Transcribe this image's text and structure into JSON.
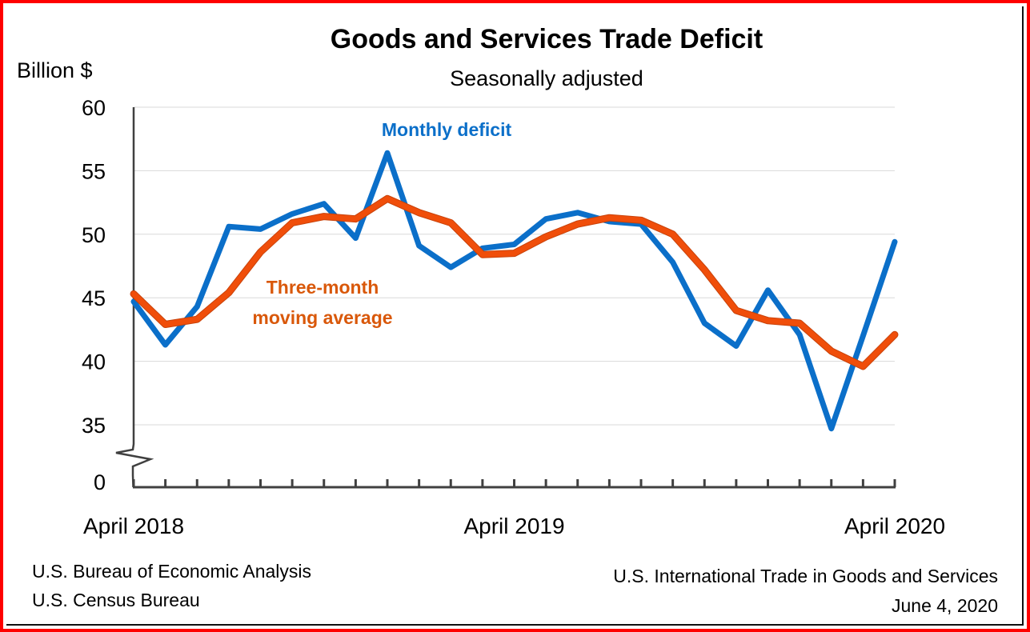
{
  "chart_data": {
    "type": "line",
    "title": "Goods and Services Trade Deficit",
    "subtitle": "Seasonally adjusted",
    "ylabel": "Billion $",
    "xlabel": "",
    "ylim": [
      30,
      60
    ],
    "y_ticks": [
      "60",
      "55",
      "50",
      "45",
      "40",
      "35",
      "0"
    ],
    "y_tick_values": [
      60,
      55,
      50,
      45,
      40,
      35
    ],
    "y_axis_break": true,
    "y_zero_label": "0",
    "grid": true,
    "x": [
      "Apr 2018",
      "May 2018",
      "Jun 2018",
      "Jul 2018",
      "Aug 2018",
      "Sep 2018",
      "Oct 2018",
      "Nov 2018",
      "Dec 2018",
      "Jan 2019",
      "Feb 2019",
      "Mar 2019",
      "Apr 2019",
      "May 2019",
      "Jun 2019",
      "Jul 2019",
      "Aug 2019",
      "Sep 2019",
      "Oct 2019",
      "Nov 2019",
      "Dec 2019",
      "Jan 2020",
      "Feb 2020",
      "Mar 2020",
      "Apr 2020"
    ],
    "x_tick_labels": [
      {
        "index": 0,
        "label": "April 2018"
      },
      {
        "index": 12,
        "label": "April 2019"
      },
      {
        "index": 24,
        "label": "April 2020"
      }
    ],
    "series": [
      {
        "name": "Monthly deficit",
        "color": "#0B6FC9",
        "values": [
          44.7,
          41.3,
          44.3,
          50.6,
          50.4,
          51.6,
          52.4,
          49.7,
          56.4,
          49.1,
          47.4,
          48.9,
          49.2,
          51.2,
          51.7,
          51.0,
          50.8,
          47.8,
          43.0,
          41.2,
          45.6,
          42.1,
          34.7,
          42.0,
          49.4
        ]
      },
      {
        "name": "Three-month moving average",
        "color": "#F04E0A",
        "values": [
          45.3,
          42.9,
          43.3,
          45.4,
          48.6,
          50.9,
          51.4,
          51.2,
          52.8,
          51.7,
          50.9,
          48.4,
          48.5,
          49.8,
          50.8,
          51.3,
          51.1,
          50.0,
          47.2,
          44.0,
          43.2,
          43.0,
          40.8,
          39.6,
          42.1
        ]
      }
    ],
    "annotations": [
      {
        "text": "Monthly deficit",
        "series": "Monthly deficit",
        "color": "#0B6FC9"
      },
      {
        "text_line1": "Three-month",
        "text_line2": "moving average",
        "series": "Three-month moving average",
        "color": "#D9580A"
      }
    ]
  },
  "footer": {
    "source_line1": "U.S. Bureau of Economic Analysis",
    "source_line2": "U.S. Census Bureau",
    "release_name": "U.S. International Trade in Goods and Services",
    "release_date": "June 4, 2020"
  },
  "colors": {
    "frame_border": "#FF0000",
    "gridline": "#D9D9D9",
    "axis": "#404040"
  }
}
